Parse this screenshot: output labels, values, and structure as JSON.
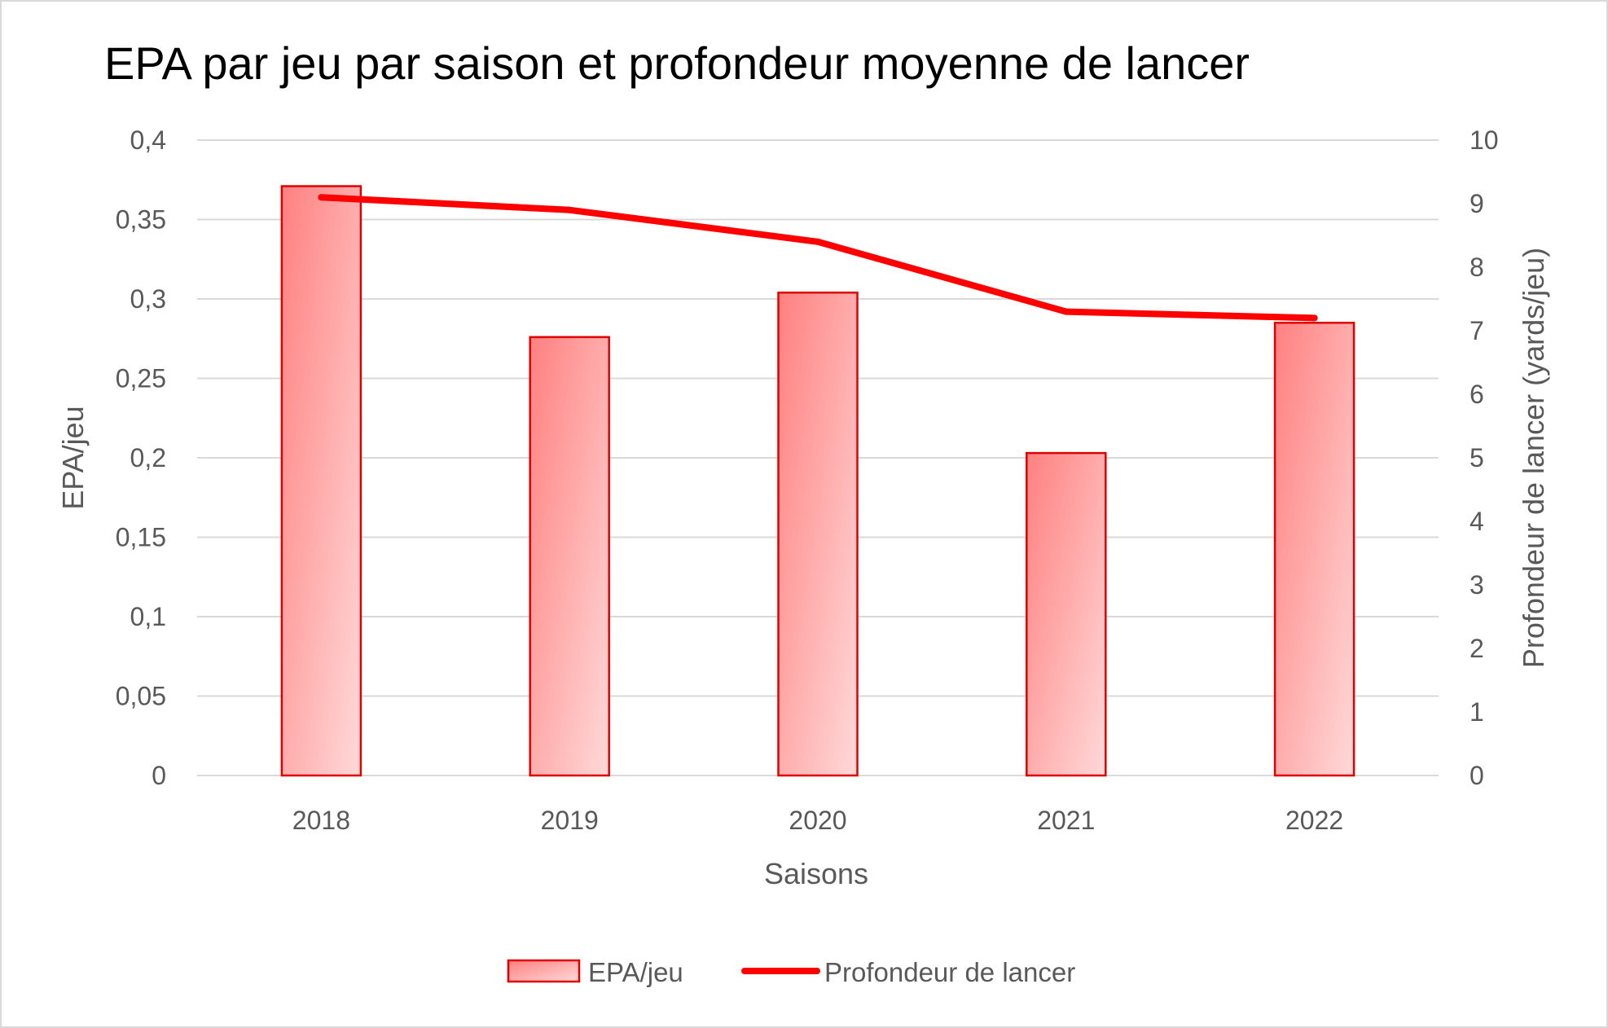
{
  "chart_data": {
    "type": "bar",
    "title": "EPA par jeu par saison et profondeur moyenne de lancer",
    "categories": [
      "2018",
      "2019",
      "2020",
      "2021",
      "2022"
    ],
    "xlabel": "Saisons",
    "ylabel": "EPA/jeu",
    "y2label": "Profondeur de lancer (yards/jeu)",
    "ylim": [
      0,
      0.4
    ],
    "y2lim": [
      0,
      10
    ],
    "yticks": [
      "0",
      "0,05",
      "0,1",
      "0,15",
      "0,2",
      "0,25",
      "0,3",
      "0,35",
      "0,4"
    ],
    "y2ticks": [
      "0",
      "1",
      "2",
      "3",
      "4",
      "5",
      "6",
      "7",
      "8",
      "9",
      "10"
    ],
    "grid": true,
    "legend_position": "bottom",
    "series": [
      {
        "name": "EPA/jeu",
        "type": "bar",
        "axis": "left",
        "values": [
          0.371,
          0.276,
          0.304,
          0.203,
          0.285
        ],
        "color": "#ff8080",
        "border_color": "#e00000"
      },
      {
        "name": "Profondeur de lancer",
        "type": "line",
        "axis": "right",
        "values": [
          9.1,
          8.9,
          8.4,
          7.3,
          7.2
        ],
        "color": "#ff0000"
      }
    ]
  }
}
